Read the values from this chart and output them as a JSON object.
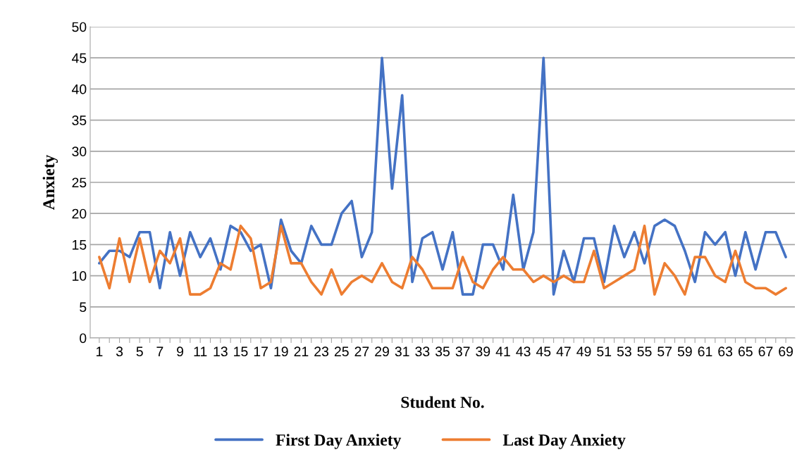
{
  "chart_data": {
    "type": "line",
    "xlabel": "Student No.",
    "ylabel": "Anxiety",
    "categories": [
      "1",
      null,
      "3",
      null,
      "5",
      null,
      "7",
      null,
      "9",
      null,
      "11",
      null,
      "13",
      null,
      "15",
      null,
      "17",
      null,
      "19",
      null,
      "21",
      null,
      "23",
      null,
      "25",
      null,
      "27",
      null,
      "29",
      null,
      "31",
      null,
      "33",
      null,
      "35",
      null,
      "37",
      null,
      "39",
      null,
      "41",
      null,
      "43",
      null,
      "45",
      null,
      "47",
      null,
      "49",
      null,
      "51",
      null,
      "53",
      null,
      "55",
      null,
      "57",
      null,
      "59",
      null,
      "61",
      null,
      "63",
      null,
      "65",
      null,
      "67",
      null,
      "69"
    ],
    "series": [
      {
        "name": "First Day Anxiety",
        "color": "#4472c4",
        "values": [
          12,
          14,
          14,
          13,
          17,
          17,
          8,
          17,
          10,
          17,
          13,
          16,
          11,
          18,
          17,
          14,
          15,
          8,
          19,
          14,
          12,
          18,
          15,
          15,
          20,
          22,
          13,
          17,
          45,
          24,
          39,
          9,
          16,
          17,
          11,
          17,
          7,
          7,
          15,
          15,
          11,
          23,
          11,
          17,
          45,
          7,
          14,
          9,
          16,
          16,
          9,
          18,
          13,
          17,
          12,
          18,
          19,
          18,
          14,
          9,
          17,
          15,
          17,
          10,
          17,
          11,
          17,
          17,
          13
        ]
      },
      {
        "name": "Last Day Anxiety",
        "color": "#ed7d31",
        "values": [
          13,
          8,
          16,
          9,
          16,
          9,
          14,
          12,
          16,
          7,
          7,
          8,
          12,
          11,
          18,
          16,
          8,
          9,
          18,
          12,
          12,
          9,
          7,
          11,
          7,
          9,
          10,
          9,
          12,
          9,
          8,
          13,
          11,
          8,
          8,
          8,
          13,
          9,
          8,
          11,
          13,
          11,
          11,
          9,
          10,
          9,
          10,
          9,
          9,
          14,
          8,
          9,
          10,
          11,
          18,
          7,
          12,
          10,
          7,
          13,
          13,
          10,
          9,
          14,
          9,
          8,
          8,
          7,
          8
        ]
      }
    ],
    "ylim": [
      0,
      50
    ],
    "yticks": [
      0,
      5,
      10,
      15,
      20,
      25,
      30,
      35,
      40,
      45,
      50
    ],
    "grid": "y",
    "legend": "bottom",
    "marker": "none",
    "line_style": "solid"
  }
}
